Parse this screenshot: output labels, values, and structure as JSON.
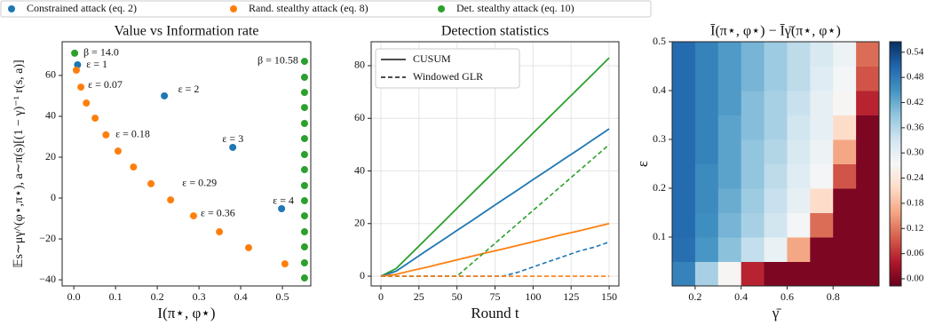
{
  "chart_data": [
    {
      "type": "scatter",
      "title": "Value vs Information rate",
      "x_label": "I(π⋆, φ⋆)",
      "y_label": "𝔼s∼μγ^(φ⋆,π⋆), a∼π(s)[(1 − γ)⁻¹ r(s, a)]",
      "xlim": [
        -0.028,
        0.568
      ],
      "ylim": [
        -43,
        76.5
      ],
      "xticks": [
        {
          "value": 0,
          "label": "0.0"
        },
        0.1,
        0.2,
        0.3,
        0.4,
        0.5
      ],
      "yticks": [
        {
          "value": -40,
          "label": "−40"
        },
        {
          "value": -20,
          "label": "−20"
        },
        0,
        20,
        40,
        60
      ],
      "grid": false,
      "legend": "top",
      "series": [
        {
          "name": "Constrained attack (eq. 2)",
          "color": "#1f77b4",
          "x": [
            0.009,
            0.217,
            0.381,
            0.498
          ],
          "values": [
            65.2,
            50,
            24.8,
            -5.2
          ]
        },
        {
          "name": "Rand. stealthy attack (eq. 8)",
          "color": "#ff7f0e",
          "x": [
            0.006,
            0.017,
            0.03,
            0.051,
            0.077,
            0.106,
            0.143,
            0.185,
            0.232,
            0.287,
            0.349,
            0.419,
            0.506
          ],
          "values": [
            62.6,
            54.3,
            46.5,
            39.1,
            30.9,
            23,
            15.2,
            7,
            -0.9,
            -8.7,
            -16.5,
            -24.3,
            -32.2
          ]
        },
        {
          "name": "Det. stealthy attack (eq. 10)",
          "color": "#2ca02c",
          "x": [
            0.002,
            0.553,
            0.553,
            0.553,
            0.553,
            0.553,
            0.553,
            0.553,
            0.553,
            0.553,
            0.553,
            0.553,
            0.553,
            0.553,
            0.553,
            0.553
          ],
          "values": [
            70.9,
            66.9,
            59.1,
            51.7,
            44.3,
            36.5,
            29.1,
            21.3,
            13.9,
            6.1,
            -1.3,
            -8.7,
            -16.5,
            -23.9,
            -31.7,
            -39.1
          ]
        }
      ],
      "annotations": [
        "β = 14.0",
        "ε = 1",
        "ε = 0.07",
        "ε = 2",
        "ε = 0.18",
        "ε = 3",
        "ε = 0.29",
        "ε = 0.36",
        "ε = 4",
        "β = 10.58"
      ]
    },
    {
      "type": "line",
      "title": "Detection statistics",
      "x_label": "Round t",
      "xlim": [
        -6.4,
        156.4
      ],
      "ylim": [
        -3.7,
        89.1
      ],
      "xticks": [
        0,
        25,
        50,
        75,
        100,
        125,
        150
      ],
      "yticks": [
        0,
        20,
        40,
        60,
        80
      ],
      "grid": true,
      "legend": "upper left",
      "styles": [
        {
          "name": "CUSUM",
          "dash": "solid"
        },
        {
          "name": "Windowed GLR",
          "dash": "dashed"
        }
      ],
      "x": [
        0,
        10,
        20,
        30,
        40,
        50,
        60,
        70,
        80,
        90,
        100,
        110,
        120,
        130,
        140,
        150
      ],
      "series": [
        {
          "color": "#2ca02c",
          "style": 0,
          "values": [
            0,
            2.9,
            8.6,
            14.3,
            20,
            25.8,
            31.5,
            37.2,
            42.9,
            48.6,
            54.4,
            60.1,
            65.8,
            71.5,
            77.2,
            83
          ]
        },
        {
          "color": "#1f77b4",
          "style": 0,
          "values": [
            0,
            1.9,
            5.8,
            9.7,
            13.5,
            17.4,
            21.2,
            25.1,
            29,
            32.8,
            36.7,
            40.5,
            44.4,
            48.2,
            52.1,
            56
          ]
        },
        {
          "color": "#ff7f0e",
          "style": 0,
          "values": [
            0,
            0.7,
            2.1,
            3.4,
            4.8,
            6.2,
            7.6,
            9,
            10.3,
            11.7,
            13.1,
            14.5,
            15.9,
            17.2,
            18.6,
            20
          ]
        },
        {
          "color": "#2ca02c",
          "style": 1,
          "values": [
            0,
            0,
            0,
            0,
            0,
            0,
            5,
            10,
            15,
            20,
            25,
            30,
            35,
            40,
            45,
            50
          ]
        },
        {
          "color": "#1f77b4",
          "style": 1,
          "values": [
            0,
            0,
            0,
            0,
            0,
            0,
            0,
            0,
            0,
            1.5,
            3.5,
            5.5,
            7.5,
            9.5,
            11,
            13
          ]
        },
        {
          "color": "#ff7f0e",
          "style": 1,
          "values": [
            0,
            0,
            0,
            0,
            0,
            0,
            0,
            0,
            0,
            0,
            0,
            0,
            0,
            0,
            0,
            0
          ]
        }
      ]
    },
    {
      "type": "heatmap",
      "title": "Ī(π⋆, φ⋆) − Īγ̄(π⋆, φ⋆)",
      "x_label": "γ̄",
      "y_label": "ε",
      "xlim": [
        0.1,
        1.0
      ],
      "ylim": [
        0.0,
        0.5
      ],
      "xticks": [
        0.2,
        0.4,
        0.6,
        0.8
      ],
      "yticks": [
        0.1,
        0.2,
        0.3,
        0.4,
        0.5
      ],
      "x": [
        0.15,
        0.25,
        0.35,
        0.45,
        0.55,
        0.65,
        0.75,
        0.85,
        0.95
      ],
      "y": [
        0.025,
        0.075,
        0.125,
        0.175,
        0.225,
        0.275,
        0.325,
        0.375,
        0.425,
        0.475
      ],
      "z": [
        [
          0.47,
          0.37,
          0.27,
          0.05,
          0,
          0,
          0,
          0,
          0
        ],
        [
          0.495,
          0.445,
          0.395,
          0.345,
          0.295,
          0.16,
          0,
          0,
          0
        ],
        [
          0.5,
          0.455,
          0.41,
          0.37,
          0.33,
          0.28,
          0.11,
          0,
          0
        ],
        [
          0.5,
          0.46,
          0.42,
          0.38,
          0.34,
          0.3,
          0.22,
          0,
          0
        ],
        [
          0.5,
          0.46,
          0.43,
          0.39,
          0.35,
          0.31,
          0.28,
          0.09,
          0
        ],
        [
          0.5,
          0.47,
          0.43,
          0.39,
          0.36,
          0.32,
          0.29,
          0.16,
          0
        ],
        [
          0.5,
          0.47,
          0.43,
          0.4,
          0.37,
          0.33,
          0.3,
          0.22,
          0
        ],
        [
          0.5,
          0.47,
          0.44,
          0.4,
          0.37,
          0.34,
          0.3,
          0.27,
          0.05
        ],
        [
          0.5,
          0.47,
          0.44,
          0.41,
          0.38,
          0.35,
          0.31,
          0.28,
          0.09
        ],
        [
          0.5,
          0.47,
          0.44,
          0.41,
          0.38,
          0.35,
          0.32,
          0.29,
          0.11
        ]
      ],
      "zlim": [
        -0.017,
        0.565
      ],
      "colormap": [
        "#67001f",
        "#b2182b",
        "#d6604d",
        "#f4a582",
        "#fddbc7",
        "#f7f7f7",
        "#d1e5f0",
        "#92c5de",
        "#4393c3",
        "#2166ac",
        "#053061"
      ],
      "colorbar_ticks": [
        {
          "value": 0,
          "label": "0.00"
        },
        {
          "value": 0.06,
          "label": "0.06"
        },
        {
          "value": 0.12,
          "label": "0.12"
        },
        {
          "value": 0.18,
          "label": "0.18"
        },
        {
          "value": 0.24,
          "label": "0.24"
        },
        {
          "value": 0.3,
          "label": "0.30"
        },
        {
          "value": 0.36,
          "label": "0.36"
        },
        {
          "value": 0.42,
          "label": "0.42"
        },
        {
          "value": 0.48,
          "label": "0.48"
        },
        {
          "value": 0.54,
          "label": "0.54"
        }
      ]
    }
  ]
}
